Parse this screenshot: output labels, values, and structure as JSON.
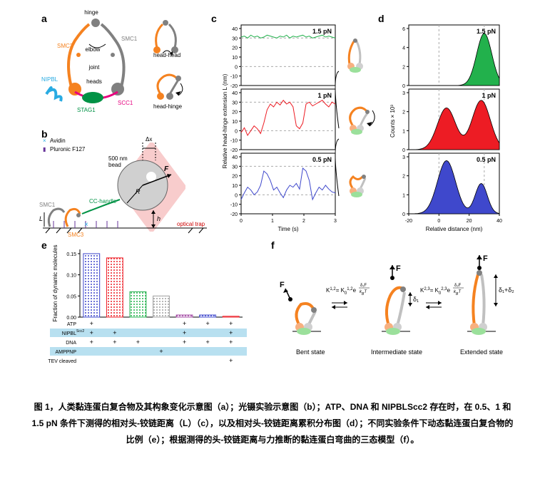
{
  "panel_labels": {
    "a": "a",
    "b": "b",
    "c": "c",
    "d": "d",
    "e": "e",
    "f": "f"
  },
  "colors": {
    "smc3": "#f58220",
    "smc1": "#808080",
    "scc1": "#e6007e",
    "stag1": "#009245",
    "nipbl": "#29abe2",
    "green_trace": "#22b14c",
    "red_trace": "#ed1c24",
    "blue_trace": "#3f48cc",
    "bar_blue": "#3f48cc",
    "bar_red": "#ed1c24",
    "bar_green": "#22b14c",
    "bar_gray": "#a0a0a0",
    "bar_purple": "#a349a4",
    "optical_trap": "#f8cccc",
    "bead": "#d0d0d0",
    "grid": "#cccccc",
    "table_blue": "#b8e0f0"
  },
  "panel_a": {
    "labels": [
      "hinge",
      "SMC3",
      "SMC1",
      "elbow",
      "joint",
      "heads",
      "NIPBL",
      "STAG1",
      "SCC1",
      "head-head",
      "head-hinge"
    ]
  },
  "panel_b": {
    "labels": {
      "avidin": "Avidin",
      "pluronic": "Pluronic F127",
      "bead": "500 nm bead",
      "dx": "Δx",
      "F": "F",
      "R": "R",
      "h": "h",
      "L": "L",
      "cc": "CC-handle",
      "smc1": "SMC1",
      "smc3": "SMC3",
      "trap": "optical trap"
    }
  },
  "panel_c": {
    "ylabel": "Relative head-hinge extension L (nm)",
    "xlabel": "Time (s)",
    "xlim": [
      0,
      3
    ],
    "ylim": [
      -20,
      40
    ],
    "yticks": [
      -20,
      -10,
      0,
      10,
      20,
      30,
      40
    ],
    "xticks": [
      0,
      1,
      2,
      3
    ],
    "dash_levels": [
      0,
      30
    ],
    "subpanels": [
      {
        "label": "1.5 pN",
        "color": "#22b14c",
        "values": [
          31,
          32,
          30,
          33,
          31,
          32,
          30,
          31,
          33,
          32,
          31,
          30,
          32,
          31,
          33,
          30,
          32,
          31,
          32,
          33,
          31,
          32,
          30,
          31,
          32,
          33,
          31,
          32,
          31,
          30
        ]
      },
      {
        "label": "1 pN",
        "color": "#ed1c24",
        "values": [
          -2,
          3,
          -5,
          0,
          5,
          2,
          -3,
          8,
          22,
          28,
          25,
          30,
          27,
          32,
          28,
          30,
          25,
          5,
          2,
          8,
          28,
          30,
          26,
          28,
          30,
          32,
          28,
          25,
          30,
          28
        ]
      },
      {
        "label": "0.5 pN",
        "color": "#3f48cc",
        "values": [
          -5,
          2,
          8,
          5,
          0,
          3,
          10,
          25,
          22,
          15,
          5,
          8,
          2,
          -3,
          5,
          10,
          8,
          12,
          6,
          28,
          25,
          15,
          -5,
          2,
          8,
          5,
          10,
          6,
          3,
          2
        ]
      }
    ]
  },
  "panel_d": {
    "ylabel": "Counts × 10³",
    "xlabel": "Relative distance (nm)",
    "xlim": [
      -20,
      40
    ],
    "xticks": [
      -20,
      0,
      20,
      40
    ],
    "vdash": [
      0,
      30
    ],
    "subpanels": [
      {
        "label": "1.5 pN",
        "color": "#22b14c",
        "ylim": [
          0,
          6
        ],
        "yticks": [
          0,
          2,
          4,
          6
        ],
        "peaks": [
          {
            "c": 30,
            "w": 5,
            "h": 5.5
          }
        ]
      },
      {
        "label": "1 pN",
        "color": "#ed1c24",
        "ylim": [
          0,
          3
        ],
        "yticks": [
          0,
          1,
          2,
          3
        ],
        "peaks": [
          {
            "c": 5,
            "w": 6,
            "h": 2.2
          },
          {
            "c": 28,
            "w": 6,
            "h": 2.6
          }
        ]
      },
      {
        "label": "0.5 pN",
        "color": "#3f48cc",
        "ylim": [
          0,
          3
        ],
        "yticks": [
          0,
          1,
          2,
          3
        ],
        "peaks": [
          {
            "c": 5,
            "w": 6,
            "h": 2.8
          },
          {
            "c": 28,
            "w": 4,
            "h": 1.6
          }
        ]
      }
    ]
  },
  "panel_e": {
    "ylabel": "Fraction of dynamic molecules",
    "ylim": [
      0,
      0.16
    ],
    "yticks": [
      0,
      0.05,
      0.1,
      0.15
    ],
    "bars": [
      {
        "v": 0.15,
        "color": "#3f48cc"
      },
      {
        "v": 0.14,
        "color": "#ed1c24"
      },
      {
        "v": 0.06,
        "color": "#22b14c"
      },
      {
        "v": 0.05,
        "color": "#a0a0a0"
      },
      {
        "v": 0.005,
        "color": "#a349a4"
      },
      {
        "v": 0.005,
        "color": "#3f48cc"
      },
      {
        "v": 0.002,
        "color": "#ed1c24"
      }
    ],
    "rows": [
      {
        "label": "ATP",
        "marks": [
          "+",
          "",
          "",
          "",
          "+",
          "+",
          "+"
        ],
        "bg": false
      },
      {
        "label": "NIPBLScc2",
        "marks": [
          "+",
          "+",
          "",
          "",
          "+",
          "",
          "+"
        ],
        "bg": true,
        "sup": "Scc2"
      },
      {
        "label": "DNA",
        "marks": [
          "+",
          "+",
          "+",
          "",
          "+",
          "+",
          "+"
        ],
        "bg": false
      },
      {
        "label": "AMPPNP",
        "marks": [
          "",
          "",
          "",
          "+",
          "",
          "",
          ""
        ],
        "bg": true
      },
      {
        "label": "TEV cleaved",
        "marks": [
          "",
          "",
          "",
          "",
          "",
          "",
          "+"
        ],
        "bg": false
      }
    ]
  },
  "panel_f": {
    "states": [
      "Bent state",
      "Intermediate state",
      "Extended state"
    ],
    "F": "F",
    "eq1": "K¹² = K₀¹² e",
    "exp1_num": "δ₁F",
    "exp1_den": "k_BT",
    "eq2": "K²³ = K₀²³ e",
    "exp2_num": "δ₂F",
    "exp2_den": "k_BT",
    "d1": "δ₁",
    "d12": "δ₁+δ₂"
  },
  "caption": "图 1，人类黏连蛋白复合物及其构象变化示意图（a）；光镊实验示意图（b）；ATP、DNA 和 NIPBLScc2 存在时，在 0.5、1 和 1.5 pN 条件下测得的相对头-铰链距离（L）（c），以及相对头-铰链距离累积分布图（d）；不同实验条件下动态黏连蛋白复合物的比例（e）；根据测得的头-铰链距离与力推断的黏连蛋白弯曲的三态模型（f）。"
}
